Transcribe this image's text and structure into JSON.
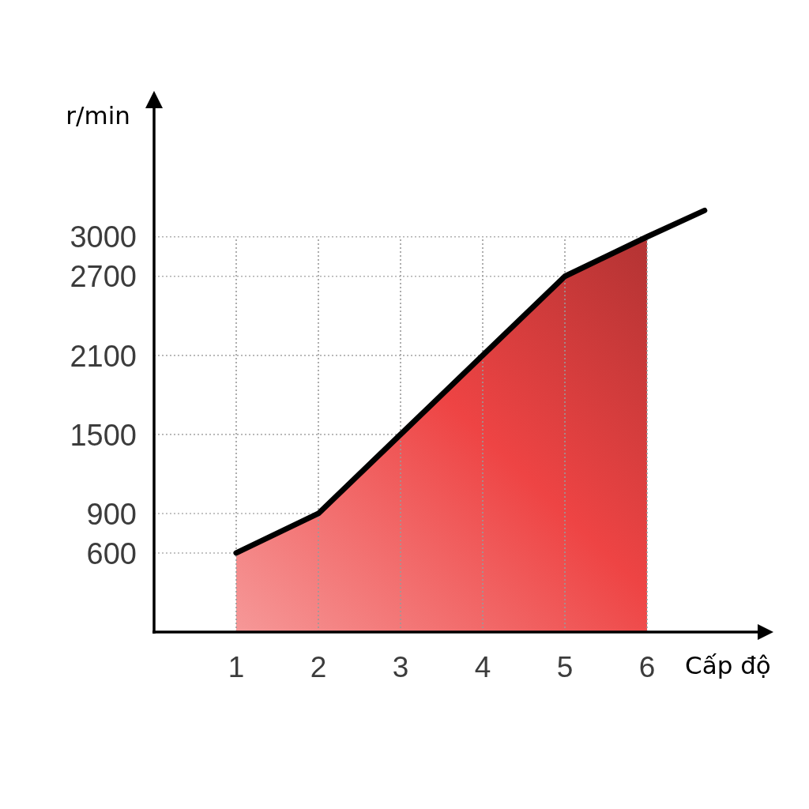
{
  "chart_data": {
    "type": "line",
    "xlabel": "Cấp độ",
    "ylabel": "r/min",
    "xlim": [
      0,
      7.5
    ],
    "xticks": [
      1,
      2,
      3,
      4,
      5,
      6
    ],
    "ylim": [
      0,
      4000
    ],
    "yticks": [
      600,
      900,
      1500,
      2100,
      2700,
      3000
    ],
    "grid": true,
    "series": [
      {
        "type": "area",
        "color": "#ee4444",
        "x": [
          1,
          2,
          3,
          4,
          5,
          6
        ],
        "values": [
          600,
          900,
          1500,
          2100,
          2700,
          3000
        ]
      },
      {
        "type": "line",
        "color": "#000000",
        "x": [
          1,
          2,
          3,
          4,
          5,
          6,
          6.7
        ],
        "values": [
          600,
          900,
          1500,
          2100,
          2700,
          3000,
          3200
        ]
      }
    ]
  }
}
